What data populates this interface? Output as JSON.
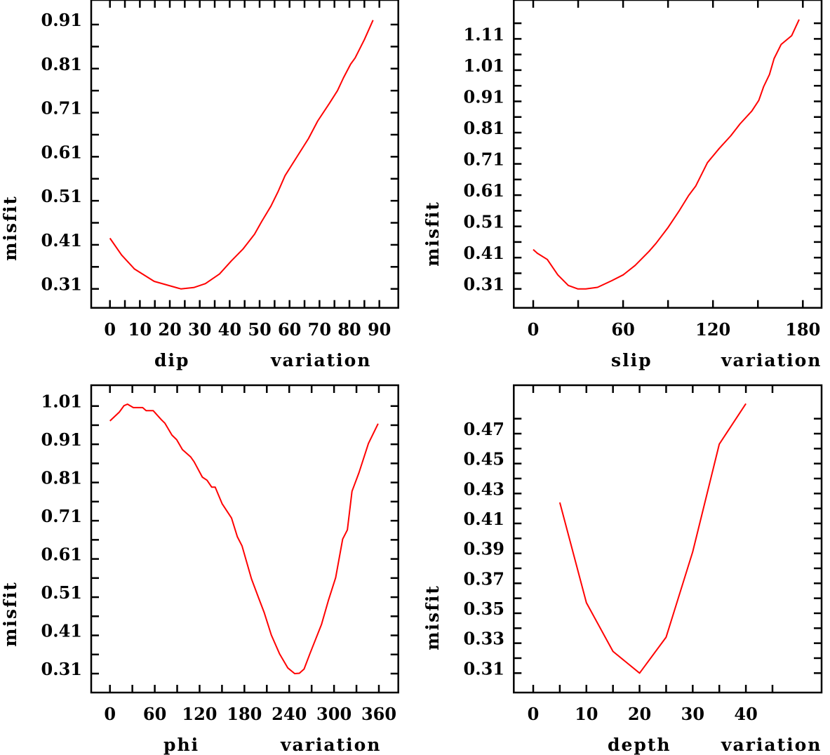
{
  "chart_data": [
    {
      "type": "line",
      "xlabel": [
        "dip",
        "variation"
      ],
      "ylabel": "misfit",
      "xlim": [
        0,
        90
      ],
      "ylim": [
        0.31,
        0.91
      ],
      "x_ticks": [
        0,
        5,
        10,
        15,
        20,
        25,
        30,
        35,
        40,
        45,
        50,
        55,
        60,
        65,
        70,
        75,
        80,
        85,
        90
      ],
      "x_tick_labels": [
        [
          "0",
          0
        ],
        [
          "10",
          10
        ],
        [
          "20",
          20
        ],
        [
          "30",
          30
        ],
        [
          "40",
          40
        ],
        [
          "50",
          50
        ],
        [
          "60",
          60
        ],
        [
          "70",
          70
        ],
        [
          "80",
          80
        ],
        [
          "90",
          90
        ]
      ],
      "y_ticks": [
        0.31,
        0.36,
        0.41,
        0.46,
        0.51,
        0.56,
        0.61,
        0.66,
        0.71,
        0.76,
        0.81,
        0.86,
        0.91
      ],
      "y_tick_labels": [
        [
          "0.31",
          0.31
        ],
        [
          "0.41",
          0.41
        ],
        [
          "0.51",
          0.51
        ],
        [
          "0.61",
          0.61
        ],
        [
          "0.71",
          0.71
        ],
        [
          "0.81",
          0.81
        ],
        [
          "0.91",
          0.91
        ]
      ],
      "color": "#ff0000",
      "x": [
        0,
        3.9,
        8.2,
        14.8,
        23.7,
        28,
        31.9,
        36.6,
        40.5,
        44.4,
        48.3,
        50.7,
        53.8,
        56.1,
        58.5,
        62.4,
        66.3,
        69.4,
        73.3,
        76,
        78,
        80.4,
        81.9,
        85,
        87.9
      ],
      "y": [
        0.425,
        0.387,
        0.355,
        0.327,
        0.31,
        0.313,
        0.322,
        0.344,
        0.373,
        0.4,
        0.434,
        0.463,
        0.498,
        0.53,
        0.567,
        0.609,
        0.651,
        0.691,
        0.731,
        0.76,
        0.789,
        0.82,
        0.834,
        0.876,
        0.92
      ]
    },
    {
      "type": "line",
      "xlabel": [
        "slip",
        "variation"
      ],
      "ylabel": "misfit",
      "xlim": [
        0,
        180
      ],
      "ylim": [
        0.31,
        1.11
      ],
      "x_ticks": [
        0,
        30,
        60,
        90,
        120,
        150,
        180
      ],
      "x_tick_labels": [
        [
          "0",
          0
        ],
        [
          "60",
          60
        ],
        [
          "120",
          120
        ],
        [
          "180",
          180
        ]
      ],
      "y_ticks": [
        0.31,
        0.36,
        0.41,
        0.46,
        0.51,
        0.56,
        0.61,
        0.66,
        0.71,
        0.76,
        0.81,
        0.86,
        0.91,
        0.96,
        1.01,
        1.06,
        1.11,
        1.16
      ],
      "y_tick_labels": [
        [
          "0.31",
          0.31
        ],
        [
          "0.41",
          0.41
        ],
        [
          "0.51",
          0.51
        ],
        [
          "0.61",
          0.61
        ],
        [
          "0.71",
          0.71
        ],
        [
          "0.81",
          0.81
        ],
        [
          "0.91",
          0.91
        ],
        [
          "1.01",
          1.01
        ],
        [
          "1.11",
          1.11
        ]
      ],
      "color": "#ff0000",
      "x": [
        0,
        2.7,
        9.4,
        16.4,
        23.4,
        29.7,
        35.1,
        42.9,
        52.3,
        60.1,
        68,
        77.3,
        82,
        89.8,
        97.6,
        103.8,
        108.5,
        116.3,
        124.1,
        131.9,
        138.1,
        145.9,
        150.6,
        153.8,
        157.7,
        160.8,
        165.5,
        172.5,
        177.5
      ],
      "y": [
        0.436,
        0.424,
        0.404,
        0.355,
        0.321,
        0.31,
        0.31,
        0.315,
        0.336,
        0.355,
        0.385,
        0.43,
        0.456,
        0.505,
        0.561,
        0.609,
        0.639,
        0.714,
        0.759,
        0.8,
        0.838,
        0.879,
        0.913,
        0.957,
        0.996,
        1.047,
        1.092,
        1.12,
        1.172
      ]
    },
    {
      "type": "line",
      "xlabel": [
        "phi",
        "variation"
      ],
      "ylabel": "misfit",
      "xlim": [
        0,
        360
      ],
      "ylim": [
        0.31,
        1.01
      ],
      "x_ticks": [
        0,
        30,
        60,
        90,
        120,
        150,
        180,
        210,
        240,
        270,
        300,
        330,
        360
      ],
      "x_tick_labels": [
        [
          "0",
          0
        ],
        [
          "60",
          60
        ],
        [
          "120",
          120
        ],
        [
          "180",
          180
        ],
        [
          "240",
          240
        ],
        [
          "300",
          300
        ],
        [
          "360",
          360
        ]
      ],
      "y_ticks": [
        0.31,
        0.36,
        0.41,
        0.46,
        0.51,
        0.56,
        0.61,
        0.66,
        0.71,
        0.76,
        0.81,
        0.86,
        0.91,
        0.96,
        1.01
      ],
      "y_tick_labels": [
        [
          "0.31",
          0.31
        ],
        [
          "0.41",
          0.41
        ],
        [
          "0.51",
          0.51
        ],
        [
          "0.61",
          0.61
        ],
        [
          "0.71",
          0.71
        ],
        [
          "0.81",
          0.81
        ],
        [
          "0.91",
          0.91
        ],
        [
          "1.01",
          1.01
        ]
      ],
      "color": "#ff0000",
      "x": [
        0,
        12.5,
        18.8,
        23.5,
        31.3,
        43.8,
        48.5,
        57.9,
        68.9,
        73.6,
        83,
        89.3,
        97,
        108,
        112.7,
        123.7,
        130,
        136.2,
        140.9,
        150.3,
        162.8,
        170.6,
        176.9,
        189.4,
        198.8,
        206.6,
        216,
        227,
        238,
        247.3,
        253.6,
        259.9,
        267.7,
        283.3,
        292.7,
        302.1,
        311.5,
        317.8,
        324,
        333.4,
        346,
        359
      ],
      "y": [
        0.971,
        0.994,
        1.011,
        1.015,
        1.006,
        1.006,
        0.998,
        0.998,
        0.974,
        0.965,
        0.934,
        0.922,
        0.896,
        0.877,
        0.864,
        0.824,
        0.816,
        0.798,
        0.798,
        0.754,
        0.717,
        0.668,
        0.644,
        0.558,
        0.509,
        0.469,
        0.411,
        0.362,
        0.325,
        0.31,
        0.311,
        0.322,
        0.362,
        0.439,
        0.503,
        0.561,
        0.662,
        0.686,
        0.787,
        0.836,
        0.912,
        0.964
      ]
    },
    {
      "type": "line",
      "xlabel": [
        "depth",
        "variation"
      ],
      "ylabel": "misfit",
      "xlim": [
        0,
        45
      ],
      "ylim": [
        0.31,
        0.47
      ],
      "x_ticks": [
        0,
        5,
        10,
        15,
        20,
        25,
        30,
        35,
        40,
        45
      ],
      "x_tick_labels": [
        [
          "0",
          0
        ],
        [
          "10",
          10
        ],
        [
          "20",
          20
        ],
        [
          "30",
          30
        ],
        [
          "40",
          40
        ]
      ],
      "y_ticks": [
        0.31,
        0.32,
        0.33,
        0.34,
        0.35,
        0.36,
        0.37,
        0.38,
        0.39,
        0.4,
        0.41,
        0.42,
        0.43,
        0.44,
        0.45,
        0.46,
        0.47,
        0.48
      ],
      "y_tick_labels": [
        [
          "0.31",
          0.31
        ],
        [
          "0.33",
          0.33
        ],
        [
          "0.35",
          0.35
        ],
        [
          "0.37",
          0.37
        ],
        [
          "0.39",
          0.39
        ],
        [
          "0.41",
          0.41
        ],
        [
          "0.43",
          0.43
        ],
        [
          "0.45",
          0.45
        ],
        [
          "0.47",
          0.47
        ]
      ],
      "color": "#ff0000",
      "x": [
        5,
        10,
        15,
        20,
        25,
        30,
        35,
        40
      ],
      "y": [
        0.424,
        0.357,
        0.3245,
        0.31,
        0.334,
        0.391,
        0.463,
        0.49
      ]
    }
  ]
}
